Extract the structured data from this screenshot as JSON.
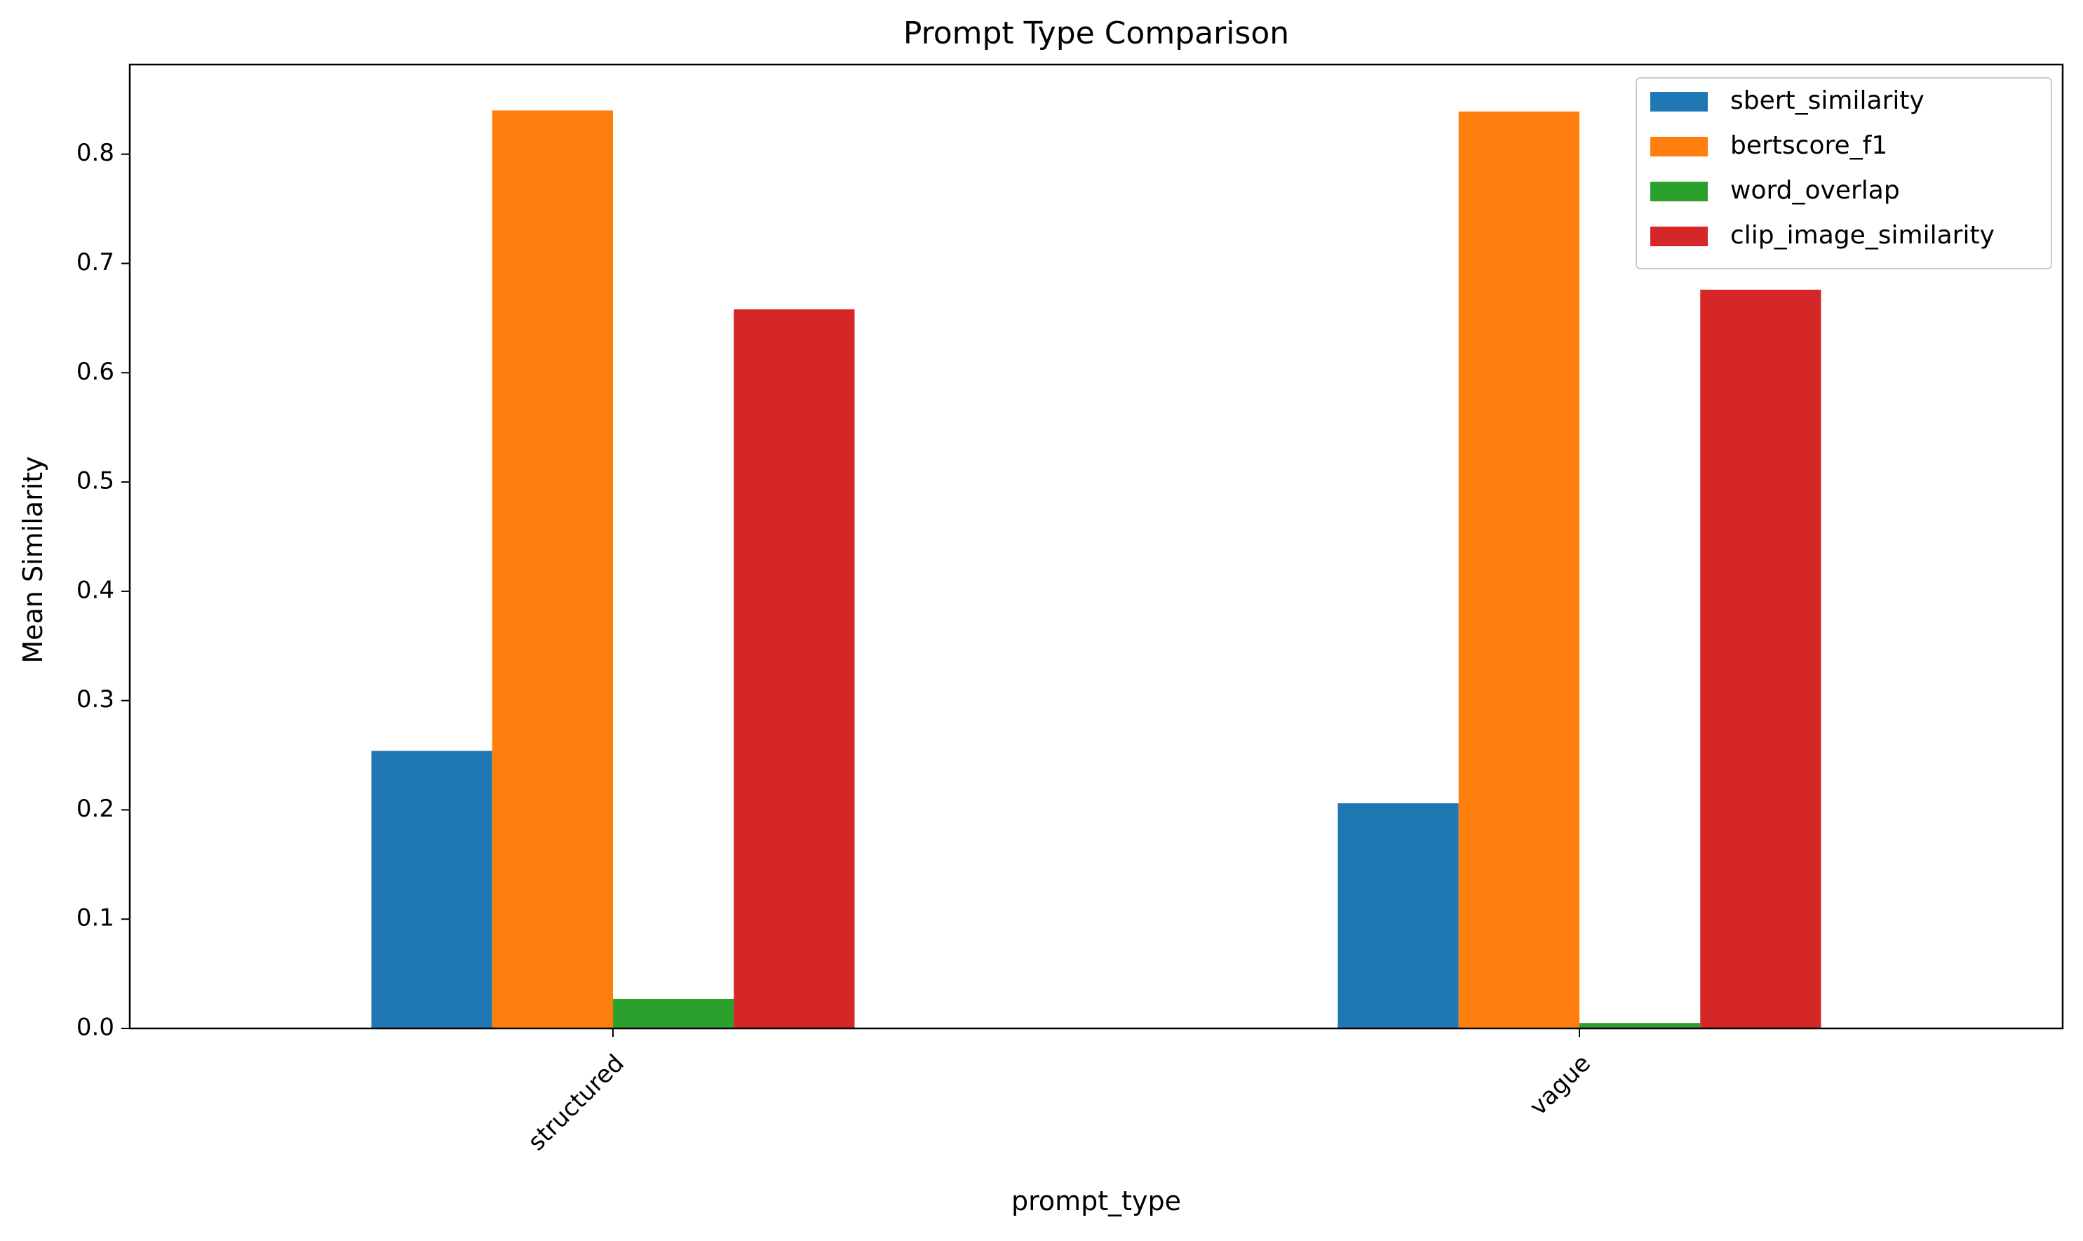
{
  "chart_data": {
    "type": "bar",
    "title": "Prompt Type Comparison",
    "xlabel": "prompt_type",
    "ylabel": "Mean Similarity",
    "categories": [
      "structured",
      "vague"
    ],
    "series": [
      {
        "name": "sbert_similarity",
        "color": "#1f77b4",
        "values": [
          0.254,
          0.206
        ]
      },
      {
        "name": "bertscore_f1",
        "color": "#ff7f0e",
        "values": [
          0.84,
          0.839
        ]
      },
      {
        "name": "word_overlap",
        "color": "#2ca02c",
        "values": [
          0.027,
          0.005
        ]
      },
      {
        "name": "clip_image_similarity",
        "color": "#d62728",
        "values": [
          0.658,
          0.676
        ]
      }
    ],
    "ylim": [
      0,
      0.882
    ],
    "yticks": [
      0.0,
      0.1,
      0.2,
      0.3,
      0.4,
      0.5,
      0.6,
      0.7,
      0.8
    ],
    "ytick_labels": [
      "0.0",
      "0.1",
      "0.2",
      "0.3",
      "0.4",
      "0.5",
      "0.6",
      "0.7",
      "0.8"
    ],
    "grid": false,
    "legend_position": "top-right",
    "xtick_rotation": 45
  }
}
